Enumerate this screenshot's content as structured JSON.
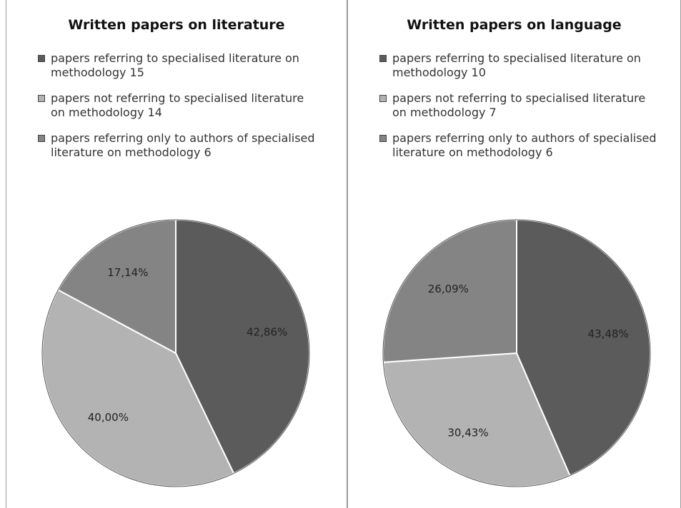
{
  "chart_data": [
    {
      "type": "pie",
      "title": "Written papers on literature",
      "categories": [
        "papers referring to specialised literature on methodology 15",
        "papers not referring to specialised literature on methodology 14",
        "papers referring only to authors of specialised literature on methodology 6"
      ],
      "values": [
        42.86,
        40.0,
        17.14
      ],
      "value_labels": [
        "42,86%",
        "40,00%",
        "17,14%"
      ],
      "colors": [
        "#5b5b5b",
        "#b3b3b3",
        "#848484"
      ]
    },
    {
      "type": "pie",
      "title": "Written papers on language",
      "categories": [
        "papers referring to specialised literature on methodology 10",
        "papers not referring to specialised literature on methodology 7",
        "papers referring only to authors of specialised literature on methodology 6"
      ],
      "values": [
        43.48,
        30.43,
        26.09
      ],
      "value_labels": [
        "43,48%",
        "30,43%",
        "26,09%"
      ],
      "colors": [
        "#5b5b5b",
        "#b3b3b3",
        "#848484"
      ]
    }
  ]
}
